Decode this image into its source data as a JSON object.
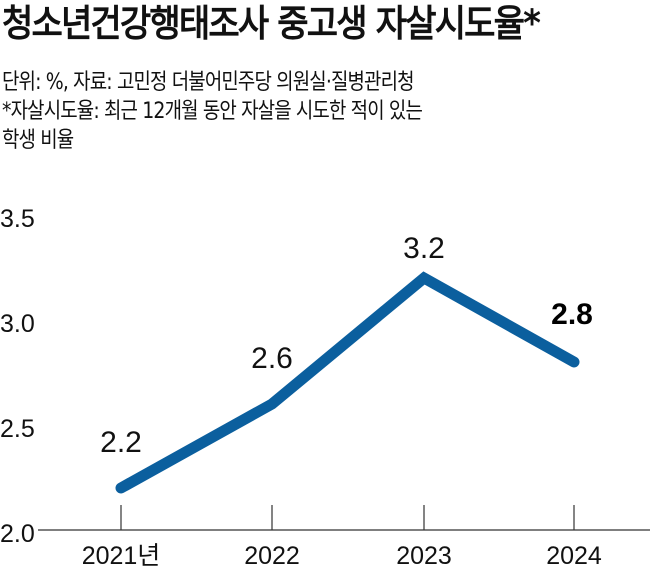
{
  "header": {
    "title": "청소년건강행태조사 중고생 자살시도율*",
    "notes": [
      "단위: %, 자료: 고민정 더불어민주당 의원실·질병관리청",
      "*자살시도율: 최근 12개월 동안 자살을 시도한 적이 있는",
      "학생 비율"
    ]
  },
  "colors": {
    "line": "#0B5F9E",
    "axis": "#333333",
    "text": "#111111"
  },
  "chart_data": {
    "type": "line",
    "title": "청소년건강행태조사 중고생 자살시도율*",
    "subtitle": "단위: %, 자료: 고민정 더불어민주당 의원실·질병관리청",
    "footnote": "*자살시도율: 최근 12개월 동안 자살을 시도한 적이 있는 학생 비율",
    "categories": [
      "2021년",
      "2022",
      "2023",
      "2024"
    ],
    "x": [
      2021,
      2022,
      2023,
      2024
    ],
    "series": [
      {
        "name": "중고생 자살시도율",
        "values": [
          2.2,
          2.6,
          3.2,
          2.8
        ]
      }
    ],
    "data_labels": [
      "2.2",
      "2.6",
      "3.2",
      "2.8"
    ],
    "highlighted_label_index": 3,
    "xlabel": "",
    "ylabel": "%",
    "ylim": [
      2.0,
      3.5
    ],
    "yticks": [
      "3.5",
      "3.0",
      "2.5",
      "2.0"
    ],
    "grid": false,
    "legend": null
  }
}
